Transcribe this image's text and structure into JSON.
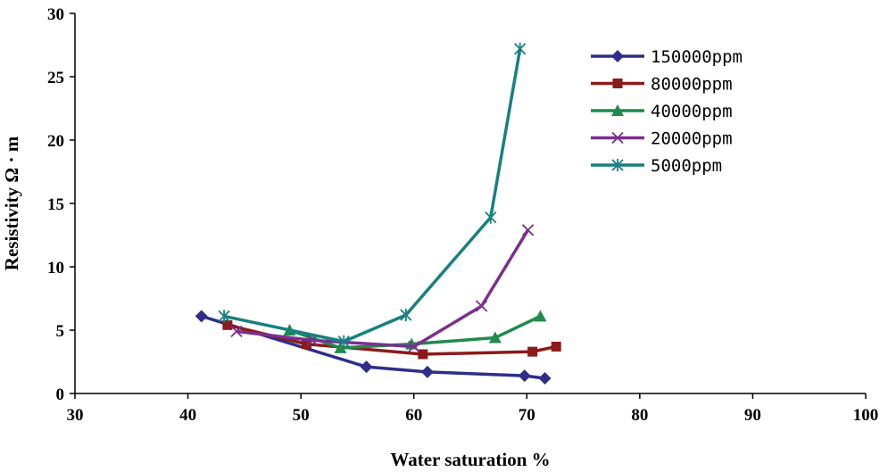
{
  "chart_data": {
    "type": "line",
    "xlabel": "Water saturation %",
    "ylabel": "Resistivity Ω · m",
    "xlim": [
      30,
      100
    ],
    "ylim": [
      0,
      30
    ],
    "xticks": [
      "30",
      "40",
      "50",
      "60",
      "70",
      "80",
      "90",
      "100"
    ],
    "yticks": [
      "0",
      "5",
      "10",
      "15",
      "20",
      "25",
      "30"
    ],
    "grid": false,
    "legend_position": "top-right",
    "series": [
      {
        "name": "150000ppm",
        "color": "#2e2e8a",
        "marker": "diamond",
        "points": [
          [
            41.2,
            6.1
          ],
          [
            55.8,
            2.1
          ],
          [
            61.2,
            1.7
          ],
          [
            69.8,
            1.4
          ],
          [
            71.6,
            1.2
          ]
        ]
      },
      {
        "name": "80000ppm",
        "color": "#8b1a1a",
        "marker": "square",
        "points": [
          [
            43.5,
            5.4
          ],
          [
            50.5,
            3.9
          ],
          [
            60.8,
            3.1
          ],
          [
            70.5,
            3.3
          ],
          [
            72.6,
            3.7
          ]
        ]
      },
      {
        "name": "40000ppm",
        "color": "#1f8a4c",
        "marker": "triangle",
        "points": [
          [
            49.0,
            5.0
          ],
          [
            53.5,
            3.6
          ],
          [
            59.8,
            3.9
          ],
          [
            67.2,
            4.4
          ],
          [
            71.2,
            6.1
          ]
        ]
      },
      {
        "name": "20000ppm",
        "color": "#7b2f8e",
        "marker": "x",
        "points": [
          [
            44.3,
            4.9
          ],
          [
            51.0,
            4.2
          ],
          [
            60.0,
            3.7
          ],
          [
            66.0,
            6.9
          ],
          [
            70.1,
            12.9
          ]
        ]
      },
      {
        "name": "5000ppm",
        "color": "#188080",
        "marker": "asterisk",
        "points": [
          [
            43.2,
            6.1
          ],
          [
            53.8,
            4.1
          ],
          [
            59.3,
            6.2
          ],
          [
            66.8,
            13.9
          ],
          [
            69.4,
            27.2
          ]
        ]
      }
    ]
  }
}
